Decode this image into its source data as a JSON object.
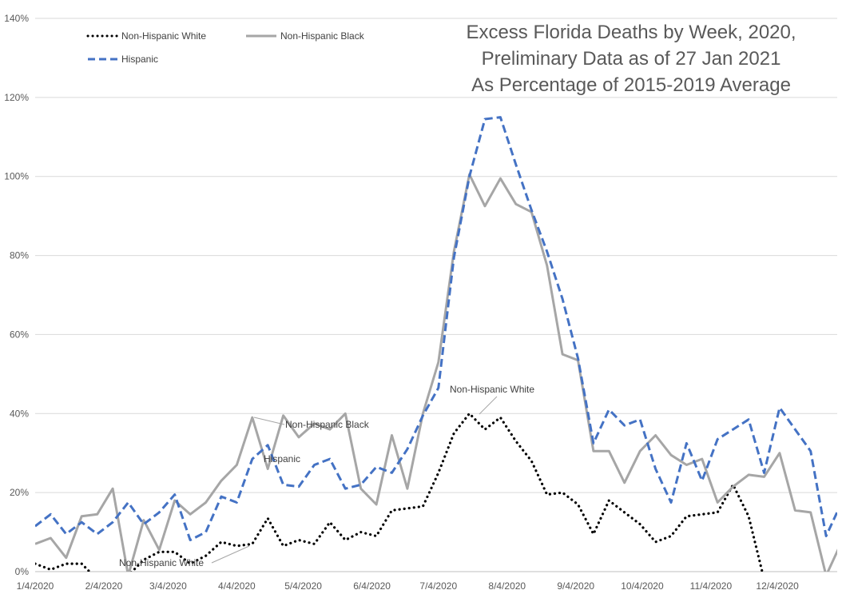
{
  "chart_data": {
    "type": "line",
    "title_lines": [
      "Excess Florida Deaths by Week, 2020,",
      "Preliminary Data as of 27 Jan 2021",
      "As Percentage of 2015-2019 Average"
    ],
    "xlabel": "",
    "ylabel": "",
    "ylim": [
      0,
      140
    ],
    "yticks": [
      "0%",
      "20%",
      "40%",
      "60%",
      "80%",
      "100%",
      "120%",
      "140%"
    ],
    "ytick_values": [
      0,
      20,
      40,
      60,
      80,
      100,
      120,
      140
    ],
    "xticks": [
      "1/4/2020",
      "2/4/2020",
      "3/4/2020",
      "4/4/2020",
      "5/4/2020",
      "6/4/2020",
      "7/4/2020",
      "8/4/2020",
      "9/4/2020",
      "10/4/2020",
      "11/4/2020",
      "12/4/2020"
    ],
    "xtick_days": [
      3,
      34,
      63,
      94,
      124,
      155,
      185,
      216,
      247,
      277,
      308,
      338
    ],
    "week_start_day": 3,
    "week_step_days": 7,
    "series": [
      {
        "name": "Non-Hispanic White",
        "style": "dotted",
        "color": "#000000",
        "values": [
          2,
          0.5,
          2,
          2,
          -2,
          -4,
          -1,
          3,
          5,
          5,
          2,
          4,
          7.5,
          6.5,
          7,
          13.5,
          6.5,
          8,
          7,
          12.5,
          8,
          10,
          9,
          15.5,
          16,
          16.5,
          25,
          35,
          40,
          36,
          39,
          33,
          28,
          19.5,
          20,
          17,
          9.5,
          18,
          15,
          12,
          7.5,
          9,
          14,
          14.5,
          15,
          22,
          14,
          -2
        ]
      },
      {
        "name": "Non-Hispanic Black",
        "style": "solid",
        "color": "#a6a6a6",
        "values": [
          7,
          8.5,
          3.5,
          14,
          14.5,
          21,
          -1,
          13,
          5.5,
          18,
          14.5,
          17.5,
          23,
          27,
          39,
          26,
          39.5,
          34,
          37.5,
          36,
          40,
          21,
          17,
          34.5,
          21,
          40,
          53,
          81,
          100.5,
          92.5,
          99.5,
          93,
          91,
          77.5,
          55,
          53.5,
          30.5,
          30.5,
          22.5,
          30.5,
          34.5,
          29.5,
          27,
          28.5,
          17.5,
          21.5,
          24.5,
          24,
          30,
          15.5,
          15,
          -1,
          7.5
        ]
      },
      {
        "name": "Hispanic",
        "style": "dashed",
        "color": "#4472c4",
        "values": [
          11.5,
          14.5,
          9.5,
          12.5,
          9.5,
          12.5,
          17.5,
          12,
          15,
          19.5,
          8,
          10,
          19,
          17.5,
          28.5,
          32,
          22,
          21.5,
          27,
          28.5,
          21,
          22,
          26.5,
          25,
          31,
          39.5,
          46.5,
          79.5,
          100,
          114.5,
          115,
          103,
          91.5,
          81,
          69,
          54,
          32.5,
          41,
          37,
          38.5,
          26,
          17.5,
          32.5,
          23,
          33.5,
          36,
          38.5,
          25,
          41.5,
          36,
          30.5,
          9,
          17.5
        ]
      }
    ],
    "legend": {
      "position": "top-left",
      "entries": [
        "Non-Hispanic White",
        "Non-Hispanic Black",
        "Hispanic"
      ]
    },
    "annotations": [
      {
        "text": "Non-Hispanic Black",
        "series": "Non-Hispanic Black"
      },
      {
        "text": "Hispanic",
        "series": "Hispanic"
      },
      {
        "text": "Non-Hispanic White",
        "series": "Non-Hispanic White"
      },
      {
        "text": "Non-Hispanic White",
        "series": "Non-Hispanic White"
      }
    ],
    "grid": true
  }
}
